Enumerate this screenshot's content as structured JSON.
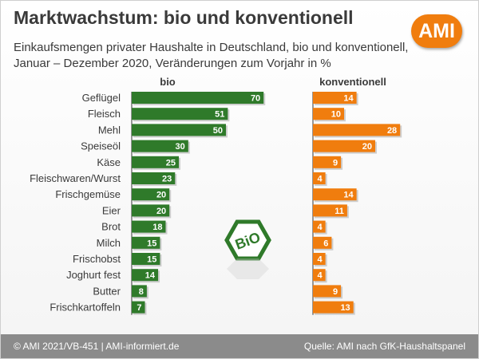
{
  "header": {
    "title": "Marktwachstum: bio und konventionell",
    "subtitle_line1": "Einkaufsmengen privater Haushalte in Deutschland, bio und konventionell,",
    "subtitle_line2": "Januar – Dezember 2020, Veränderungen zum Vorjahr in %",
    "logo_text": "AMI"
  },
  "bio_seal_text": "BiO",
  "footer": {
    "left": "© AMI 2021/VB-451 | AMI-informiert.de",
    "right": "Quelle:  AMI nach GfK-Haushaltspanel"
  },
  "colors": {
    "bio": "#2f7a2a",
    "konventionell": "#f07d0e",
    "accent": "#f07d0e"
  },
  "chart_data": {
    "type": "bar",
    "orientation": "horizontal",
    "categories": [
      "Geflügel",
      "Fleisch",
      "Mehl",
      "Speiseöl",
      "Käse",
      "Fleischwaren/Wurst",
      "Frischgemüse",
      "Eier",
      "Brot",
      "Milch",
      "Frischobst",
      "Joghurt fest",
      "Butter",
      "Frischkartoffeln"
    ],
    "series": [
      {
        "name": "bio",
        "values": [
          70,
          51,
          50,
          30,
          25,
          23,
          20,
          20,
          18,
          15,
          15,
          14,
          8,
          7
        ]
      },
      {
        "name": "konventionell",
        "values": [
          14,
          10,
          28,
          20,
          9,
          4,
          14,
          11,
          4,
          6,
          4,
          4,
          9,
          13
        ]
      }
    ],
    "data_labels": true
  }
}
